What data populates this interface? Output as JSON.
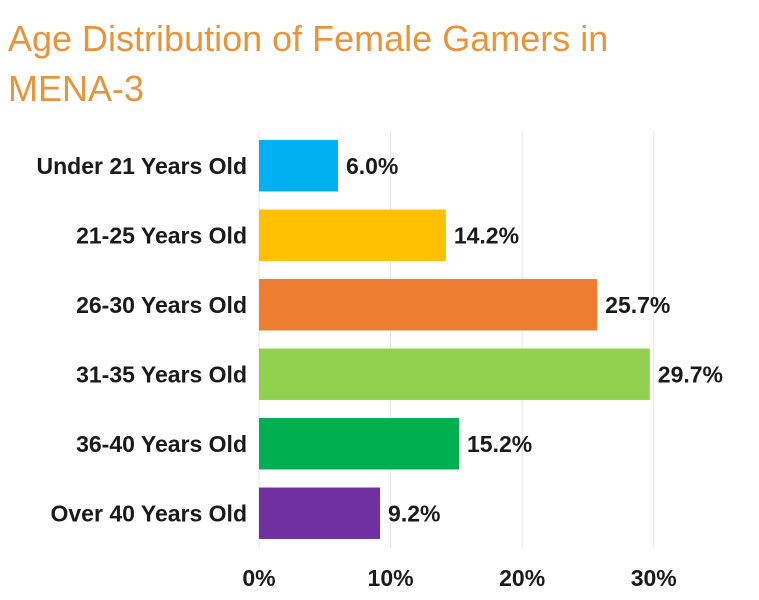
{
  "chart_data": {
    "type": "bar",
    "orientation": "horizontal",
    "title": "Age Distribution of Female Gamers in MENA-3",
    "categories": [
      "Under 21 Years Old",
      "21-25 Years Old",
      "26-30 Years Old",
      "31-35 Years Old",
      "36-40 Years Old",
      "Over 40 Years Old"
    ],
    "values": [
      6.0,
      14.2,
      25.7,
      29.7,
      15.2,
      9.2
    ],
    "value_labels": [
      "6.0%",
      "14.2%",
      "25.7%",
      "29.7%",
      "15.2%",
      "9.2%"
    ],
    "colors": [
      "#00b0f0",
      "#ffc000",
      "#ed7d31",
      "#92d050",
      "#00b050",
      "#7030a0"
    ],
    "xlim": [
      0,
      38
    ],
    "xticks": [
      0,
      10,
      20,
      30
    ],
    "xtick_labels": [
      "0%",
      "10%",
      "20%",
      "30%"
    ],
    "grid": true,
    "xlabel": "",
    "ylabel": ""
  },
  "style": {
    "title_color": "#e8943a",
    "grid_color": "#e6e6e6"
  }
}
